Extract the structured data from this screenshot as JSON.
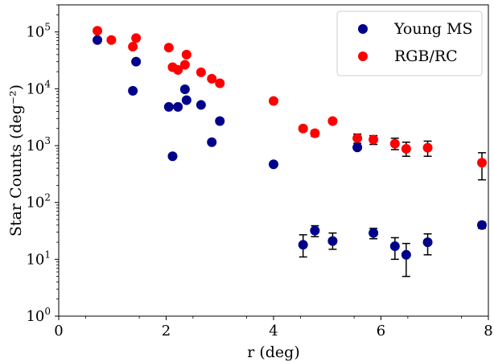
{
  "chart_data": {
    "type": "scatter",
    "title": "",
    "xlabel": "r (deg)",
    "ylabel": "Star Counts (deg⁻²)",
    "xlim": [
      0,
      8
    ],
    "ylim": [
      1,
      300000
    ],
    "yscale": "log",
    "grid": false,
    "legend_position": "top-right",
    "x_ticks": [
      0,
      2,
      4,
      6,
      8
    ],
    "x_tick_labels": [
      "0",
      "2",
      "4",
      "6",
      "8"
    ],
    "y_ticks": [
      1,
      10,
      100,
      1000,
      10000,
      100000
    ],
    "y_tick_labels": [
      {
        "base": "10",
        "exp": "0"
      },
      {
        "base": "10",
        "exp": "1"
      },
      {
        "base": "10",
        "exp": "2"
      },
      {
        "base": "10",
        "exp": "3"
      },
      {
        "base": "10",
        "exp": "4"
      },
      {
        "base": "10",
        "exp": "5"
      }
    ],
    "series": [
      {
        "name": "Young MS",
        "color": "#00008b",
        "points": [
          {
            "x": 0.72,
            "y": 72000
          },
          {
            "x": 1.38,
            "y": 9200
          },
          {
            "x": 1.44,
            "y": 30000
          },
          {
            "x": 2.05,
            "y": 4800
          },
          {
            "x": 2.12,
            "y": 650
          },
          {
            "x": 2.22,
            "y": 4800
          },
          {
            "x": 2.35,
            "y": 9800
          },
          {
            "x": 2.38,
            "y": 6300
          },
          {
            "x": 2.65,
            "y": 5200
          },
          {
            "x": 2.85,
            "y": 1150
          },
          {
            "x": 3.0,
            "y": 2700
          },
          {
            "x": 4.0,
            "y": 470
          },
          {
            "x": 4.55,
            "y": 18,
            "err_low": 11,
            "err_high": 27
          },
          {
            "x": 4.77,
            "y": 32,
            "err_low": 25,
            "err_high": 39
          },
          {
            "x": 5.1,
            "y": 21,
            "err_low": 15,
            "err_high": 29
          },
          {
            "x": 5.56,
            "y": 930
          },
          {
            "x": 5.86,
            "y": 29,
            "err_low": 23,
            "err_high": 35
          },
          {
            "x": 6.26,
            "y": 17,
            "err_low": 10,
            "err_high": 24
          },
          {
            "x": 6.47,
            "y": 12,
            "err_low": 5,
            "err_high": 19
          },
          {
            "x": 6.87,
            "y": 20,
            "err_low": 12,
            "err_high": 28
          },
          {
            "x": 7.88,
            "y": 40,
            "err_low": 35,
            "err_high": 45
          }
        ]
      },
      {
        "name": "RGB/RC",
        "color": "#ff0000",
        "points": [
          {
            "x": 0.72,
            "y": 105000
          },
          {
            "x": 0.98,
            "y": 72000
          },
          {
            "x": 1.38,
            "y": 55000
          },
          {
            "x": 1.44,
            "y": 78000
          },
          {
            "x": 2.05,
            "y": 53000
          },
          {
            "x": 2.12,
            "y": 24000
          },
          {
            "x": 2.22,
            "y": 21500
          },
          {
            "x": 2.35,
            "y": 26500
          },
          {
            "x": 2.38,
            "y": 40000
          },
          {
            "x": 2.65,
            "y": 19500
          },
          {
            "x": 2.85,
            "y": 15000
          },
          {
            "x": 3.0,
            "y": 12500
          },
          {
            "x": 4.0,
            "y": 6100
          },
          {
            "x": 4.55,
            "y": 2000,
            "err_low": 1800,
            "err_high": 2200
          },
          {
            "x": 4.77,
            "y": 1650,
            "err_low": 1450,
            "err_high": 1850
          },
          {
            "x": 5.1,
            "y": 2700
          },
          {
            "x": 5.56,
            "y": 1350,
            "err_low": 1100,
            "err_high": 1600
          },
          {
            "x": 5.86,
            "y": 1280,
            "err_low": 1050,
            "err_high": 1500
          },
          {
            "x": 6.26,
            "y": 1080,
            "err_low": 850,
            "err_high": 1350
          },
          {
            "x": 6.47,
            "y": 880,
            "err_low": 650,
            "err_high": 1150
          },
          {
            "x": 6.87,
            "y": 920,
            "err_low": 650,
            "err_high": 1200
          },
          {
            "x": 7.88,
            "y": 500,
            "err_low": 250,
            "err_high": 750
          }
        ]
      }
    ]
  }
}
